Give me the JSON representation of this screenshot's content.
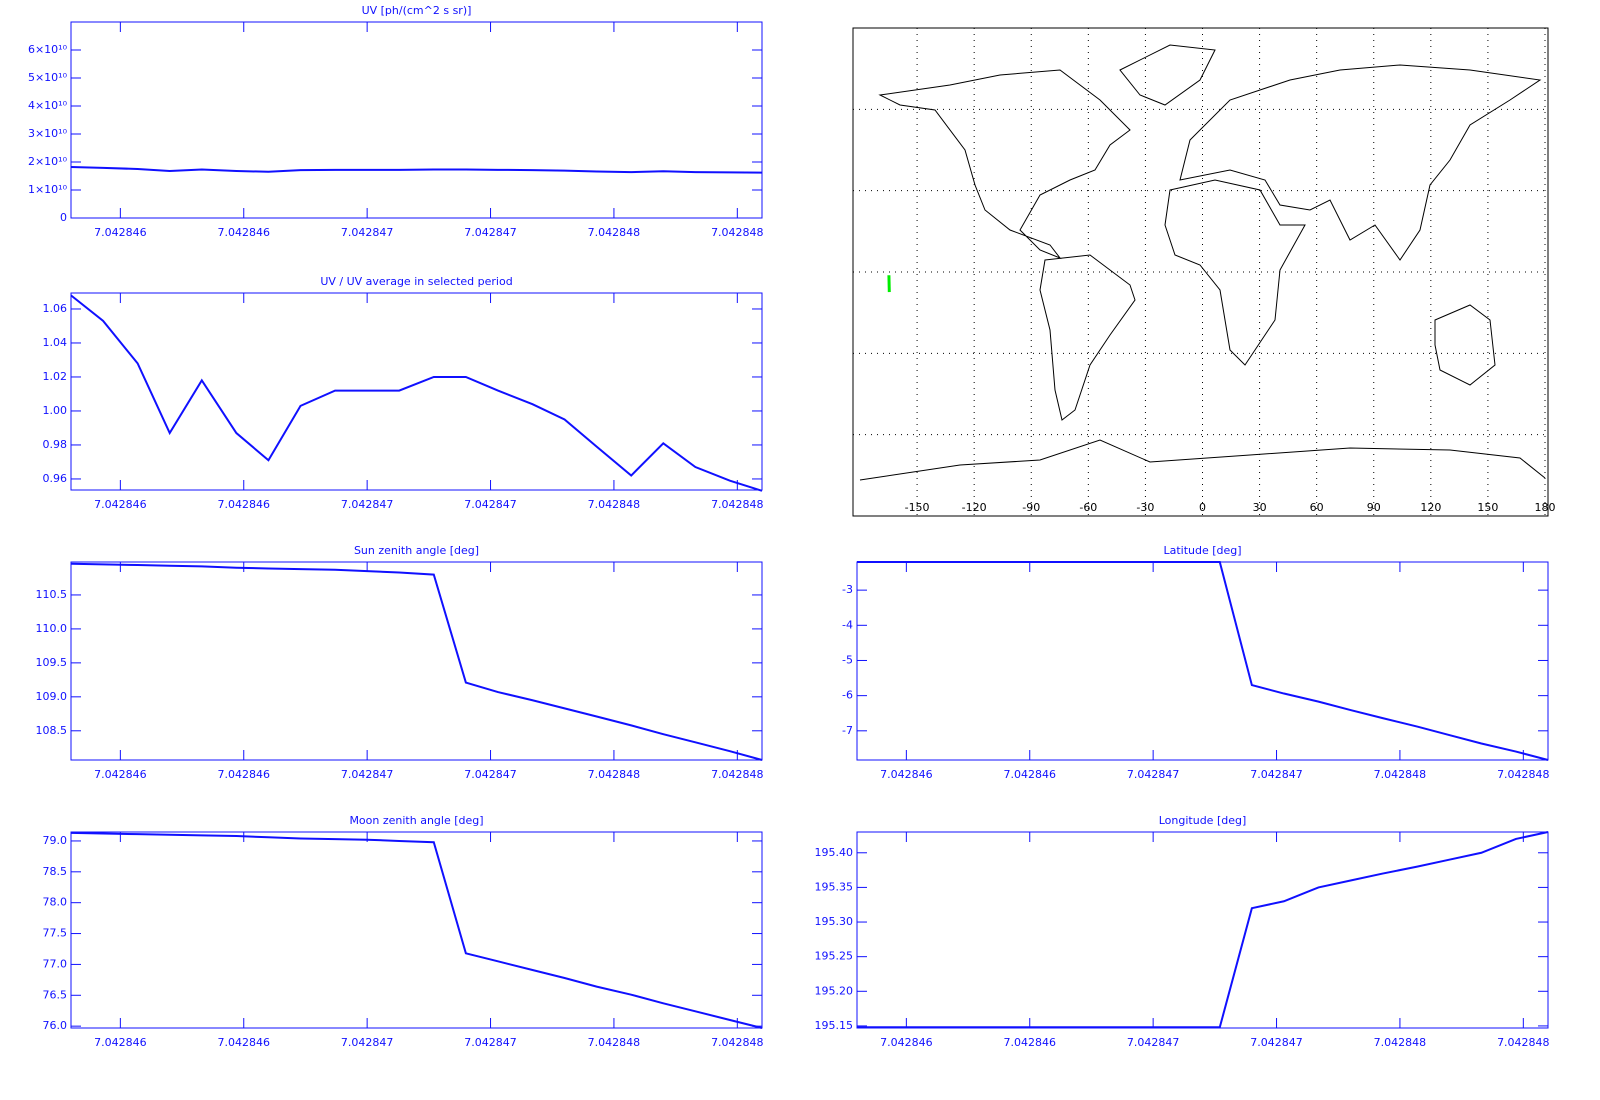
{
  "chart_data": [
    {
      "type": "line",
      "title": "UV [ph/(cm^2 s sr)]",
      "color": "#1010ff",
      "x": [
        7.0428454,
        7.04284553,
        7.04284567,
        7.0428458,
        7.04284593,
        7.04284607,
        7.0428462,
        7.04284633,
        7.04284647,
        7.0428466,
        7.04284673,
        7.04284687,
        7.042847,
        7.04284713,
        7.04284727,
        7.0428474,
        7.04284753,
        7.04284767,
        7.0428478,
        7.04284793,
        7.04284807,
        7.0428482
      ],
      "values": [
        18200000000.0,
        17900000000.0,
        17500000000.0,
        16800000000.0,
        17300000000.0,
        16800000000.0,
        16500000000.0,
        17100000000.0,
        17200000000.0,
        17200000000.0,
        17200000000.0,
        17300000000.0,
        17300000000.0,
        17200000000.0,
        17100000000.0,
        16900000000.0,
        16600000000.0,
        16400000000.0,
        16700000000.0,
        16400000000.0,
        16300000000.0,
        16200000000.0
      ],
      "xlim": [
        7.0428454,
        7.0428482
      ],
      "xticks": [
        {
          "value": 7.0428456,
          "label": "7.042846"
        },
        {
          "value": 7.0428461,
          "label": "7.042846"
        },
        {
          "value": 7.0428466,
          "label": "7.042847"
        },
        {
          "value": 7.0428471,
          "label": "7.042847"
        },
        {
          "value": 7.0428476,
          "label": "7.042848"
        },
        {
          "value": 7.0428481,
          "label": "7.042848"
        }
      ],
      "ylim": [
        0,
        70000000000.0
      ],
      "yticks": [
        0,
        {
          "value": 10000000000.0,
          "label": "1×10¹⁰"
        },
        {
          "value": 20000000000.0,
          "label": "2×10¹⁰"
        },
        {
          "value": 30000000000.0,
          "label": "3×10¹⁰"
        },
        {
          "value": 40000000000.0,
          "label": "4×10¹⁰"
        },
        {
          "value": 50000000000.0,
          "label": "5×10¹⁰"
        },
        {
          "value": 60000000000.0,
          "label": "6×10¹⁰"
        }
      ]
    },
    {
      "type": "line",
      "title": "UV / UV average in selected period",
      "color": "#1010ff",
      "x": [
        7.0428454,
        7.04284553,
        7.04284567,
        7.0428458,
        7.04284593,
        7.04284607,
        7.0428462,
        7.04284633,
        7.04284647,
        7.0428466,
        7.04284673,
        7.04284687,
        7.042847,
        7.04284713,
        7.04284727,
        7.0428474,
        7.04284753,
        7.04284767,
        7.0428478,
        7.04284793,
        7.04284807,
        7.0428482
      ],
      "values": [
        1.068,
        1.053,
        1.028,
        0.987,
        1.018,
        0.987,
        0.971,
        1.003,
        1.012,
        1.012,
        1.012,
        1.02,
        1.02,
        1.012,
        1.004,
        0.995,
        0.979,
        0.962,
        0.981,
        0.967,
        0.959,
        0.953
      ],
      "xlim": [
        7.0428454,
        7.0428482
      ],
      "xticks": [
        {
          "value": 7.0428456,
          "label": "7.042846"
        },
        {
          "value": 7.0428461,
          "label": "7.042846"
        },
        {
          "value": 7.0428466,
          "label": "7.042847"
        },
        {
          "value": 7.0428471,
          "label": "7.042847"
        },
        {
          "value": 7.0428476,
          "label": "7.042848"
        },
        {
          "value": 7.0428481,
          "label": "7.042848"
        }
      ],
      "ylim": [
        0.9535,
        1.0694
      ],
      "yticks": [
        0.96,
        0.98,
        {
          "value": 1,
          "label": "1.00"
        },
        1.02,
        1.04,
        1.06
      ]
    },
    {
      "type": "map",
      "track_color": "#00ee00",
      "xlim": [
        -180,
        180
      ],
      "ylim": [
        -90,
        90
      ],
      "xticks": [
        -150,
        -120,
        -90,
        -60,
        -30,
        0,
        30,
        60,
        90,
        120,
        150,
        180
      ],
      "ygrid": [
        -60,
        -30,
        0,
        30,
        60
      ],
      "track_lon": [
        -164.8,
        -164.6
      ],
      "track_lat": [
        -1.2,
        -7.4
      ]
    },
    {
      "type": "line",
      "title": "Sun zenith angle [deg]",
      "color": "#1010ff",
      "x": [
        7.0428454,
        7.04284553,
        7.04284567,
        7.0428458,
        7.04284593,
        7.04284607,
        7.0428462,
        7.04284633,
        7.04284647,
        7.0428466,
        7.04284673,
        7.04284687,
        7.042847,
        7.04284713,
        7.04284727,
        7.0428474,
        7.04284753,
        7.04284767,
        7.0428478,
        7.04284793,
        7.04284807,
        7.0428482
      ],
      "values": [
        110.96,
        110.95,
        110.94,
        110.93,
        110.92,
        110.9,
        110.89,
        110.88,
        110.87,
        110.85,
        110.83,
        110.8,
        109.21,
        109.07,
        108.95,
        108.83,
        108.71,
        108.58,
        108.45,
        108.33,
        108.2,
        108.07
      ],
      "xlim": [
        7.0428454,
        7.0428482
      ],
      "xticks": [
        {
          "value": 7.0428456,
          "label": "7.042846"
        },
        {
          "value": 7.0428461,
          "label": "7.042846"
        },
        {
          "value": 7.0428466,
          "label": "7.042847"
        },
        {
          "value": 7.0428471,
          "label": "7.042847"
        },
        {
          "value": 7.0428476,
          "label": "7.042848"
        },
        {
          "value": 7.0428481,
          "label": "7.042848"
        }
      ],
      "ylim": [
        108.07,
        110.985
      ],
      "yticks": [
        108.5,
        {
          "value": 109,
          "label": "109.0"
        },
        109.5,
        {
          "value": 110,
          "label": "110.0"
        },
        110.5
      ]
    },
    {
      "type": "line",
      "title": "Latitude [deg]",
      "color": "#1010ff",
      "x": [
        7.0428454,
        7.04284553,
        7.04284567,
        7.0428458,
        7.04284593,
        7.04284607,
        7.0428462,
        7.04284633,
        7.04284647,
        7.0428466,
        7.04284673,
        7.04284687,
        7.042847,
        7.04284713,
        7.04284727,
        7.0428474,
        7.04284753,
        7.04284767,
        7.0428478,
        7.04284793,
        7.04284807,
        7.0428482
      ],
      "values": [
        -2.2,
        -2.2,
        -2.2,
        -2.2,
        -2.2,
        -2.2,
        -2.2,
        -2.2,
        -2.2,
        -2.2,
        -2.2,
        -2.2,
        -5.7,
        -5.94,
        -6.17,
        -6.41,
        -6.64,
        -6.88,
        -7.12,
        -7.36,
        -7.59,
        -7.83
      ],
      "xlim": [
        7.0428454,
        7.0428482
      ],
      "xticks": [
        {
          "value": 7.0428456,
          "label": "7.042846"
        },
        {
          "value": 7.0428461,
          "label": "7.042846"
        },
        {
          "value": 7.0428466,
          "label": "7.042847"
        },
        {
          "value": 7.0428471,
          "label": "7.042847"
        },
        {
          "value": 7.0428476,
          "label": "7.042848"
        },
        {
          "value": 7.0428481,
          "label": "7.042848"
        }
      ],
      "ylim": [
        -7.83,
        -2.2
      ],
      "yticks": [
        -7,
        -6,
        -5,
        -4,
        -3
      ]
    },
    {
      "type": "line",
      "title": "Moon zenith angle [deg]",
      "color": "#1010ff",
      "x": [
        7.0428454,
        7.04284553,
        7.04284567,
        7.0428458,
        7.04284593,
        7.04284607,
        7.0428462,
        7.04284633,
        7.04284647,
        7.0428466,
        7.04284673,
        7.04284687,
        7.042847,
        7.04284713,
        7.04284727,
        7.0428474,
        7.04284753,
        7.04284767,
        7.0428478,
        7.04284793,
        7.04284807,
        7.0428482
      ],
      "values": [
        79.13,
        79.12,
        79.11,
        79.1,
        79.09,
        79.08,
        79.06,
        79.04,
        79.03,
        79.02,
        79.0,
        78.98,
        77.18,
        77.05,
        76.91,
        76.78,
        76.64,
        76.51,
        76.37,
        76.24,
        76.1,
        75.97
      ],
      "xlim": [
        7.0428454,
        7.0428482
      ],
      "xticks": [
        {
          "value": 7.0428456,
          "label": "7.042846"
        },
        {
          "value": 7.0428461,
          "label": "7.042846"
        },
        {
          "value": 7.0428466,
          "label": "7.042847"
        },
        {
          "value": 7.0428471,
          "label": "7.042847"
        },
        {
          "value": 7.0428476,
          "label": "7.042848"
        },
        {
          "value": 7.0428481,
          "label": "7.042848"
        }
      ],
      "ylim": [
        75.97,
        79.145
      ],
      "yticks": [
        {
          "value": 76,
          "label": "76.0"
        },
        76.5,
        {
          "value": 77,
          "label": "77.0"
        },
        77.5,
        {
          "value": 78,
          "label": "78.0"
        },
        78.5,
        {
          "value": 79,
          "label": "79.0"
        }
      ]
    },
    {
      "type": "line",
      "title": "Longitude [deg]",
      "color": "#1010ff",
      "x": [
        7.0428454,
        7.04284553,
        7.04284567,
        7.0428458,
        7.04284593,
        7.04284607,
        7.0428462,
        7.04284633,
        7.04284647,
        7.0428466,
        7.04284673,
        7.04284687,
        7.042847,
        7.04284713,
        7.04284727,
        7.0428474,
        7.04284753,
        7.04284767,
        7.0428478,
        7.04284793,
        7.04284807,
        7.0428482
      ],
      "values": [
        195.148,
        195.148,
        195.148,
        195.148,
        195.148,
        195.148,
        195.148,
        195.148,
        195.148,
        195.148,
        195.148,
        195.148,
        195.32,
        195.33,
        195.35,
        195.36,
        195.37,
        195.38,
        195.39,
        195.4,
        195.42,
        195.43
      ],
      "xlim": [
        7.0428454,
        7.0428482
      ],
      "xticks": [
        {
          "value": 7.0428456,
          "label": "7.042846"
        },
        {
          "value": 7.0428461,
          "label": "7.042846"
        },
        {
          "value": 7.0428466,
          "label": "7.042847"
        },
        {
          "value": 7.0428471,
          "label": "7.042847"
        },
        {
          "value": 7.0428476,
          "label": "7.042848"
        },
        {
          "value": 7.0428481,
          "label": "7.042848"
        }
      ],
      "ylim": [
        195.147,
        195.43
      ],
      "yticks": [
        195.15,
        {
          "value": 195.2,
          "label": "195.20"
        },
        195.25,
        {
          "value": 195.3,
          "label": "195.30"
        },
        195.35,
        {
          "value": 195.4,
          "label": "195.40"
        }
      ]
    }
  ]
}
